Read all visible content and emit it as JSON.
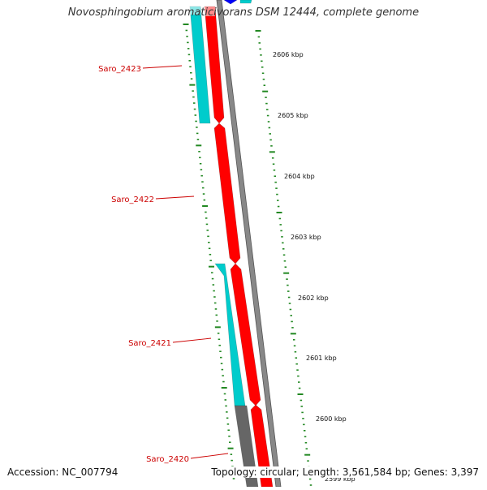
{
  "title": "Novosphingobium aromaticivorans DSM 12444, complete genome",
  "accession": "Accession: NC_007794",
  "topology": "Topology: circular; Length: 3,561,584 bp; Genes: 3,397",
  "colors": {
    "forward_track": "#ff0000",
    "reverse_track": "#00cccc",
    "other_track": "#666666",
    "backbone": "#888888",
    "ticks": "#228822",
    "gene_labels": "#cc0000",
    "blue_feature": "#0000ff"
  },
  "gene_labels": [
    {
      "name": "Saro_2423"
    },
    {
      "name": "Saro_2422"
    },
    {
      "name": "Saro_2421"
    },
    {
      "name": "Saro_2420"
    }
  ],
  "ruler": [
    {
      "label": "2606 kbp"
    },
    {
      "label": "2605 kbp"
    },
    {
      "label": "2604 kbp"
    },
    {
      "label": "2603 kbp"
    },
    {
      "label": "2602 kbp"
    },
    {
      "label": "2601 kbp"
    },
    {
      "label": "2600 kbp"
    },
    {
      "label": "2599 kbp"
    }
  ]
}
